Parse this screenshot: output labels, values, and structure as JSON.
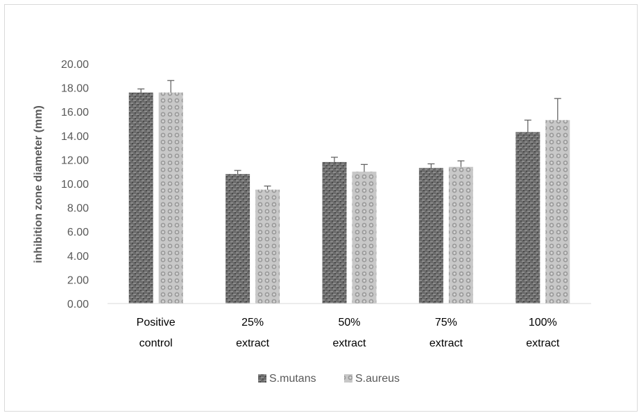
{
  "chart_data": {
    "type": "bar",
    "title": "",
    "xlabel": "",
    "ylabel": "inhibition zone diameter (mm)",
    "ylim": [
      0,
      20
    ],
    "yticks": [
      "0.00",
      "2.00",
      "4.00",
      "6.00",
      "8.00",
      "10.00",
      "12.00",
      "14.00",
      "16.00",
      "18.00",
      "20.00"
    ],
    "categories": [
      [
        "Positive",
        "control"
      ],
      [
        "25%",
        "extract"
      ],
      [
        "50%",
        "extract"
      ],
      [
        "75%",
        "extract"
      ],
      [
        "100%",
        "extract"
      ]
    ],
    "series": [
      {
        "name": "S.mutans",
        "values": [
          17.6,
          10.8,
          11.8,
          11.3,
          14.3
        ],
        "errors": [
          0.3,
          0.3,
          0.4,
          0.35,
          1.0
        ],
        "color": "#595959"
      },
      {
        "name": "S.aureus",
        "values": [
          17.6,
          9.5,
          11.0,
          11.4,
          15.3
        ],
        "errors": [
          1.0,
          0.3,
          0.6,
          0.5,
          1.8
        ],
        "color": "#a6a6a6"
      }
    ],
    "grid": false,
    "legend": "bottom"
  }
}
